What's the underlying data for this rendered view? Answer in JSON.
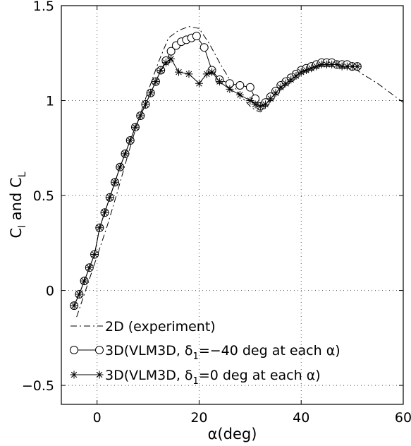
{
  "chart_data": {
    "type": "line",
    "xlabel": "α(deg)",
    "ylabel": "C_l and C_L",
    "xlim": [
      -7,
      60
    ],
    "ylim": [
      -0.6,
      1.5
    ],
    "x_ticks": [
      0,
      20,
      40,
      60
    ],
    "y_ticks": [
      -0.5,
      0,
      0.5,
      1,
      1.5
    ],
    "x_tick_labels": [
      "0",
      "20",
      "40",
      "60"
    ],
    "y_tick_labels": [
      "−0.5",
      "0",
      "0.5",
      "1",
      "1.5"
    ],
    "grid": "dotted",
    "legend_position": "bottom-left",
    "series": [
      {
        "name": "2D (experiment)",
        "style": "dash-dot",
        "marker": "none",
        "x": [
          -4,
          -2,
          0,
          2,
          4,
          6,
          8,
          10,
          12,
          14,
          16,
          18,
          20,
          22,
          24,
          26,
          28,
          30,
          31,
          32,
          33,
          34,
          36,
          38,
          40,
          42,
          44,
          46,
          48,
          50,
          52,
          55,
          58,
          60
        ],
        "y": [
          -0.14,
          0.02,
          0.18,
          0.34,
          0.52,
          0.71,
          0.89,
          1.05,
          1.2,
          1.33,
          1.37,
          1.39,
          1.38,
          1.3,
          1.2,
          1.11,
          1.03,
          0.97,
          0.95,
          0.94,
          0.96,
          1.0,
          1.06,
          1.12,
          1.16,
          1.19,
          1.21,
          1.21,
          1.2,
          1.18,
          1.14,
          1.09,
          1.03,
          0.99
        ]
      },
      {
        "name": "3D(VLM3D, δ_1=−40 deg at each α)",
        "style": "solid",
        "marker": "circle",
        "x": [
          -4.5,
          -3.5,
          -2.5,
          -1.5,
          -0.5,
          0.5,
          1.5,
          2.5,
          3.5,
          4.5,
          5.5,
          6.5,
          7.5,
          8.5,
          9.5,
          10.5,
          11.5,
          12.5,
          13.5,
          14.5,
          15.5,
          16.5,
          17.5,
          18.5,
          19.5,
          21.0,
          22.5,
          24.0,
          26.0,
          28.0,
          30.0,
          31.0,
          32.0,
          33.0,
          34.0,
          35.0,
          36.0,
          37.0,
          38.0,
          39.0,
          40.0,
          41.0,
          42.0,
          43.0,
          44.0,
          45.0,
          46.0,
          47.0,
          48.0,
          49.0,
          50.0,
          51.0
        ],
        "y": [
          -0.08,
          -0.02,
          0.05,
          0.12,
          0.19,
          0.33,
          0.41,
          0.49,
          0.57,
          0.65,
          0.72,
          0.79,
          0.86,
          0.92,
          0.98,
          1.04,
          1.1,
          1.16,
          1.21,
          1.26,
          1.29,
          1.31,
          1.32,
          1.33,
          1.34,
          1.28,
          1.16,
          1.11,
          1.09,
          1.08,
          1.07,
          1.01,
          0.97,
          0.99,
          1.02,
          1.05,
          1.08,
          1.1,
          1.12,
          1.14,
          1.16,
          1.17,
          1.18,
          1.19,
          1.2,
          1.2,
          1.2,
          1.19,
          1.19,
          1.19,
          1.18,
          1.18
        ]
      },
      {
        "name": "3D(VLM3D, δ_1=0 deg at each α)",
        "style": "solid",
        "marker": "star",
        "x": [
          -4.5,
          -3.5,
          -2.5,
          -1.5,
          -0.5,
          0.5,
          1.5,
          2.5,
          3.5,
          4.5,
          5.5,
          6.5,
          7.5,
          8.5,
          9.5,
          10.5,
          11.5,
          12.5,
          13.5,
          14.5,
          16.0,
          18.0,
          20.0,
          21.5,
          22.5,
          24.0,
          26.0,
          28.0,
          30.0,
          31.0,
          32.0,
          33.0,
          34.0,
          35.0,
          36.0,
          37.0,
          38.0,
          39.0,
          40.0,
          41.0,
          42.0,
          43.0,
          44.0,
          45.0,
          46.0,
          47.0,
          48.0,
          49.0,
          50.0,
          51.0
        ],
        "y": [
          -0.08,
          -0.02,
          0.05,
          0.12,
          0.19,
          0.33,
          0.41,
          0.49,
          0.57,
          0.65,
          0.72,
          0.79,
          0.86,
          0.92,
          0.98,
          1.04,
          1.1,
          1.16,
          1.2,
          1.22,
          1.15,
          1.14,
          1.09,
          1.14,
          1.15,
          1.1,
          1.06,
          1.03,
          1.0,
          0.98,
          0.97,
          0.98,
          1.01,
          1.04,
          1.07,
          1.09,
          1.11,
          1.13,
          1.15,
          1.16,
          1.17,
          1.18,
          1.19,
          1.19,
          1.19,
          1.19,
          1.18,
          1.18,
          1.18,
          1.18
        ]
      }
    ]
  }
}
